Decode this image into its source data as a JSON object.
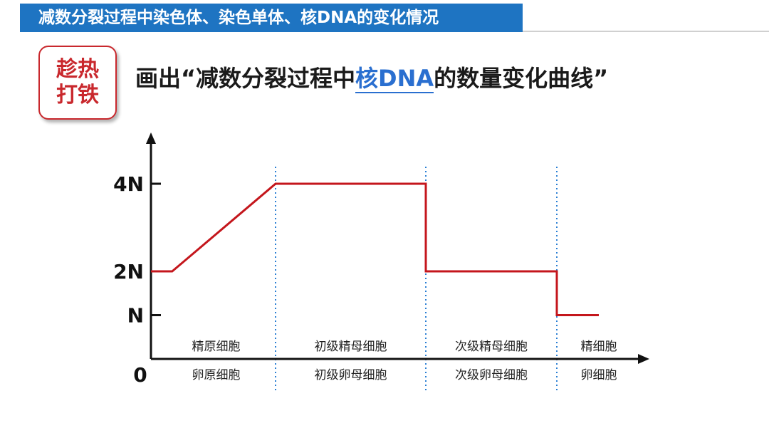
{
  "header": {
    "title": "减数分裂过程中染色体、染色单体、核DNA的变化情况"
  },
  "badge": {
    "line1": "趁热",
    "line2": "打铁"
  },
  "heading": {
    "prefix": "画出“减数分裂过程中",
    "emphasis": "核DNA",
    "suffix": "的数量变化曲线”"
  },
  "colors": {
    "banner": "#1e74c2",
    "accent_red": "#c9282d",
    "curve": "#c4161c",
    "divider": "#2a7fd4",
    "emphasis": "#2a6fd0"
  },
  "chart_data": {
    "type": "line",
    "title": "",
    "xlabel": "",
    "ylabel": "",
    "y_ticks": [
      {
        "label": "4N",
        "value": 4
      },
      {
        "label": "2N",
        "value": 2
      },
      {
        "label": "N",
        "value": 1
      }
    ],
    "origin_label": "0",
    "ylim": [
      0,
      5
    ],
    "stages": [
      {
        "male": "精原细胞",
        "female": "卵原细胞"
      },
      {
        "male": "初级精母细胞",
        "female": "初级卵母细胞"
      },
      {
        "male": "次级精母细胞",
        "female": "次级卵母细胞"
      },
      {
        "male": "精细胞",
        "female": "卵细胞"
      }
    ],
    "series": [
      {
        "points": [
          {
            "x": 0.0,
            "y": 2
          },
          {
            "x": 0.17,
            "y": 2
          },
          {
            "x": 1.0,
            "y": 4
          },
          {
            "x": 2.0,
            "y": 4
          },
          {
            "x": 2.0,
            "y": 2
          },
          {
            "x": 3.0,
            "y": 2
          },
          {
            "x": 3.0,
            "y": 1
          },
          {
            "x": 3.5,
            "y": 1
          }
        ]
      }
    ]
  }
}
